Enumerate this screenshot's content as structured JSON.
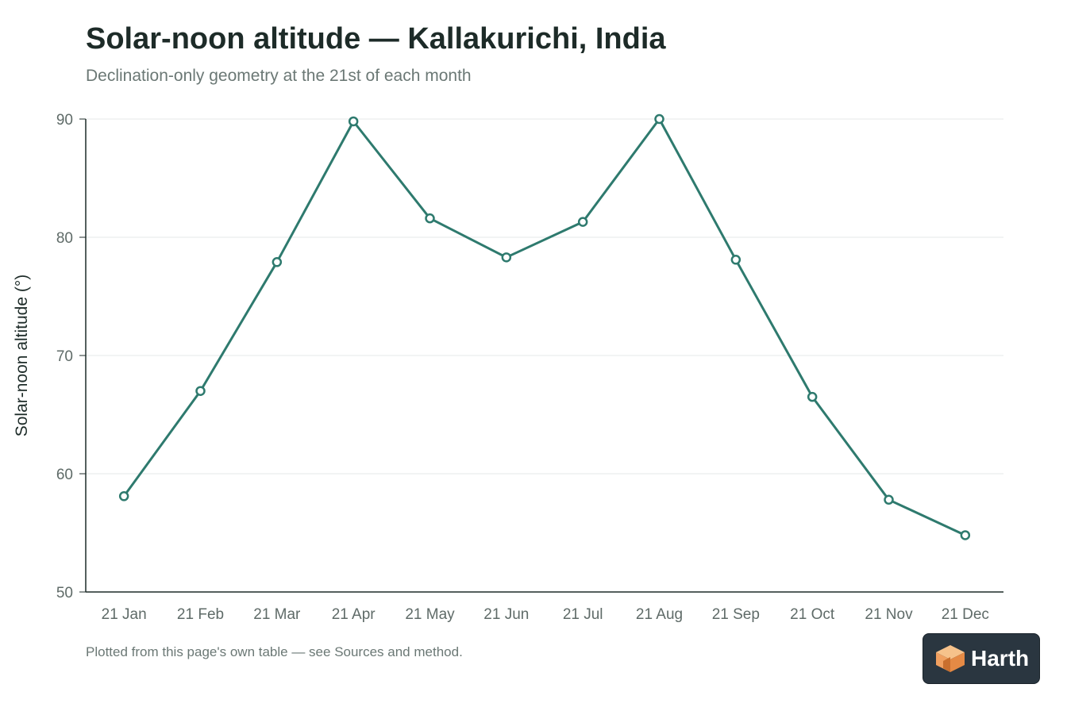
{
  "chart_data": {
    "type": "line",
    "title": "Solar-noon altitude — Kallakurichi, India",
    "subtitle": "Declination-only geometry at the 21st of each month",
    "ylabel": "Solar-noon altitude (°)",
    "xlabel": "",
    "categories": [
      "21 Jan",
      "21 Feb",
      "21 Mar",
      "21 Apr",
      "21 May",
      "21 Jun",
      "21 Jul",
      "21 Aug",
      "21 Sep",
      "21 Oct",
      "21 Nov",
      "21 Dec"
    ],
    "values": [
      58.1,
      67.0,
      77.9,
      89.8,
      81.6,
      78.3,
      81.3,
      90.0,
      78.1,
      66.5,
      57.8,
      54.8
    ],
    "ylim": [
      50,
      90
    ],
    "yticks": [
      50,
      60,
      70,
      80,
      90
    ],
    "grid": true,
    "line_color": "#2e7a6e",
    "marker": "hollow-circle"
  },
  "footnote": "Plotted from this page's own table — see Sources and method.",
  "brand": {
    "name": "Harth",
    "icon": "house-cube-icon"
  }
}
